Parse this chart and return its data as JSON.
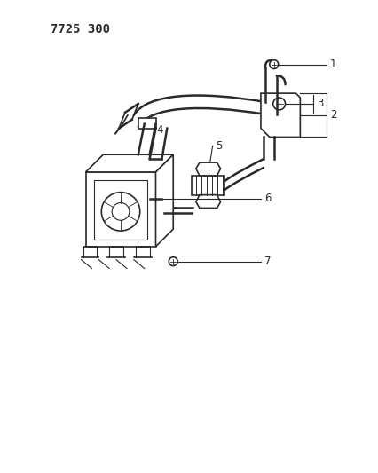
{
  "title": "7725 300",
  "bg_color": "#ffffff",
  "line_color": "#2a2a2a",
  "text_color": "#2a2a2a",
  "title_fontsize": 10,
  "label_fontsize": 8.5,
  "figsize": [
    4.27,
    5.33
  ],
  "dpi": 100
}
